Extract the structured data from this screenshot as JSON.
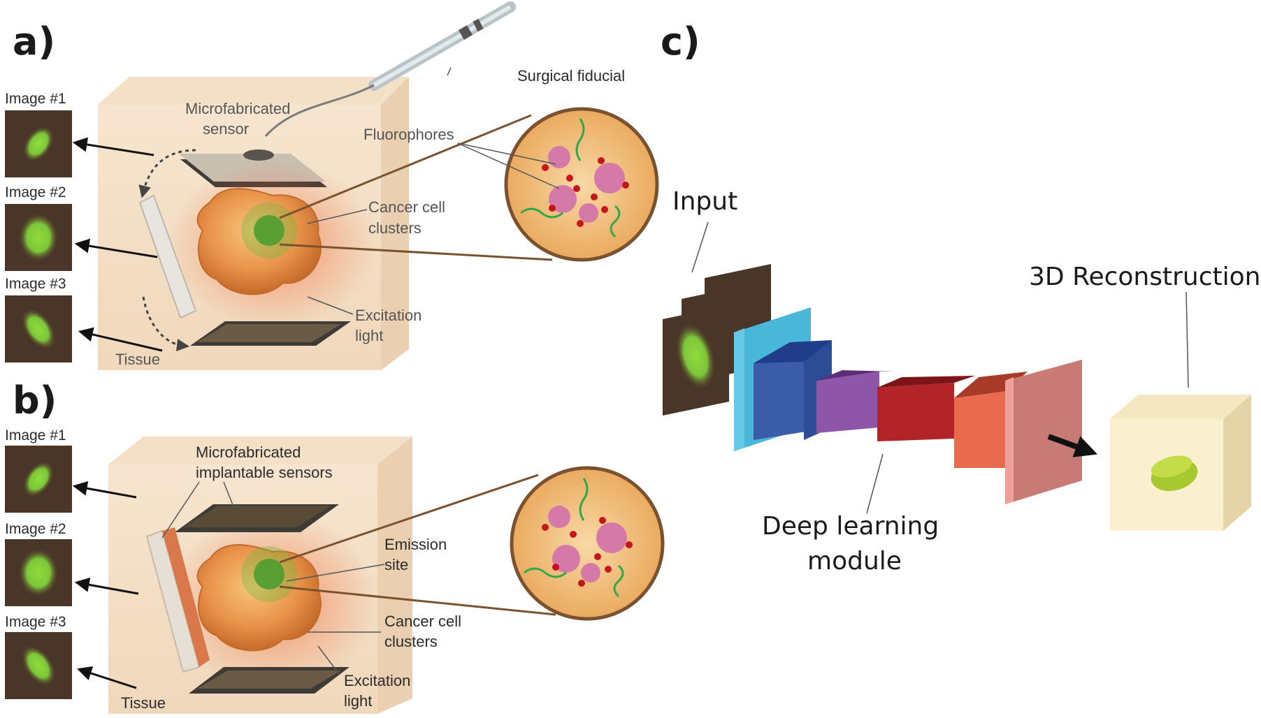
{
  "panel_a": {
    "letter": "a)",
    "image_labels": [
      "Image #1",
      "Image #2",
      "Image #3"
    ],
    "labels": {
      "surgical_fiducial": "Surgical fiducial",
      "sensor_line1": "Microfabricated",
      "sensor_line2": "sensor",
      "fluorophores": "Fluorophores",
      "cancer_line1": "Cancer cell",
      "cancer_line2": "clusters",
      "excitation_line1": "Excitation",
      "excitation_line2": "light",
      "tissue": "Tissue"
    }
  },
  "panel_b": {
    "letter": "b)",
    "image_labels": [
      "Image #1",
      "Image #2",
      "Image #3"
    ],
    "labels": {
      "sensors_line1": "Microfabricated",
      "sensors_line2": "implantable sensors",
      "emission_line1": "Emission",
      "emission_line2": "site",
      "cancer_line1": "Cancer cell",
      "cancer_line2": "clusters",
      "excitation_line1": "Excitation",
      "excitation_line2": "light",
      "tissue": "Tissue"
    }
  },
  "panel_c": {
    "letter": "c)",
    "input": "Input",
    "reconstruction": "3D Reconstruction",
    "deep_line1": "Deep learning",
    "deep_line2": "module"
  },
  "colors": {
    "tissue": "#f3dcc0",
    "green": "#7cc63a",
    "brown": "#4a3628",
    "accent_line": "#7a5230"
  }
}
